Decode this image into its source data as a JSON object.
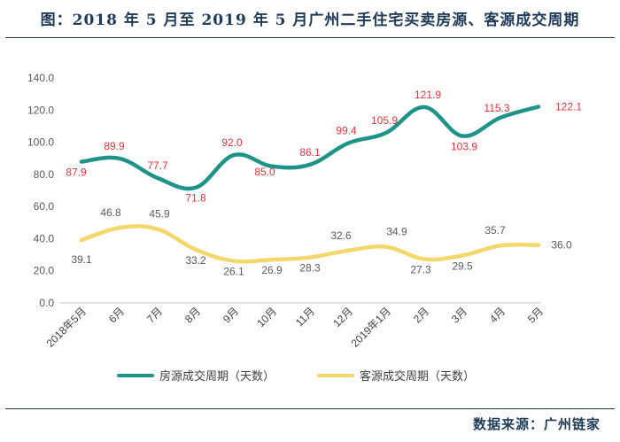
{
  "title": "图：2018 年 5 月至 2019 年 5 月广州二手住宅买卖房源、客源成交周期",
  "source": "数据来源：广州链家",
  "chart_data": {
    "type": "line",
    "categories": [
      "2018年5月",
      "6月",
      "7月",
      "8月",
      "9月",
      "10月",
      "11月",
      "12月",
      "2019年1月",
      "2月",
      "3月",
      "4月",
      "5月"
    ],
    "series": [
      {
        "name": "房源成交周期（天数）",
        "color": "#1f9388",
        "label_color": "#e0343b",
        "values": [
          87.9,
          89.9,
          77.7,
          71.8,
          92.0,
          85.0,
          86.1,
          99.4,
          105.9,
          121.9,
          103.9,
          115.3,
          122.1
        ]
      },
      {
        "name": "客源成交周期（天数）",
        "color": "#f4d76b",
        "label_color": "#595959",
        "values": [
          39.1,
          46.8,
          45.9,
          33.2,
          26.1,
          26.9,
          28.3,
          32.6,
          34.9,
          27.3,
          29.5,
          35.7,
          36.0
        ]
      }
    ],
    "yticks": [
      "0.0",
      "20.0",
      "40.0",
      "60.0",
      "80.0",
      "100.0",
      "120.0",
      "140.0"
    ],
    "ylim": [
      0,
      140
    ],
    "xlabel": "",
    "ylabel": "",
    "legend_position": "bottom"
  }
}
